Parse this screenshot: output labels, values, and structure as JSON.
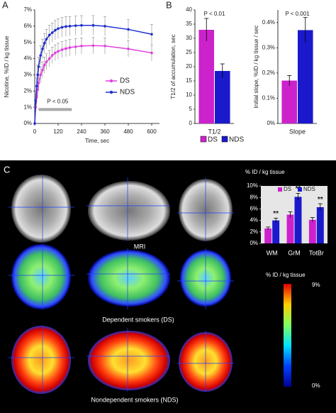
{
  "panels": [
    "A",
    "B",
    "C"
  ],
  "image_labels": {
    "mri": "MRI",
    "ds": "Dependent smokers (DS)",
    "nds": "Nondependent smokers (NDS)"
  },
  "colorbar": {
    "title": "% ID / kg tissue",
    "max_label": "9%",
    "min_label": "0%"
  },
  "chart_data": [
    {
      "type": "line",
      "x_label": "Time, sec",
      "y_label": "Nicotine, %ID / kg tissue",
      "x": [
        0,
        5,
        10,
        15,
        20,
        30,
        40,
        50,
        60,
        75,
        90,
        105,
        120,
        140,
        160,
        180,
        210,
        240,
        300,
        360,
        480,
        600
      ],
      "series": [
        {
          "name": "DS",
          "color": "#e040e0",
          "values": [
            0,
            1.0,
            1.6,
            2.1,
            2.5,
            3.0,
            3.3,
            3.6,
            3.8,
            4.0,
            4.2,
            4.35,
            4.45,
            4.55,
            4.62,
            4.68,
            4.73,
            4.78,
            4.8,
            4.78,
            4.6,
            4.35
          ],
          "errors": [
            0,
            0.3,
            0.4,
            0.45,
            0.5,
            0.5,
            0.5,
            0.5,
            0.5,
            0.5,
            0.5,
            0.5,
            0.5,
            0.5,
            0.5,
            0.5,
            0.5,
            0.5,
            0.5,
            0.5,
            0.5,
            0.5
          ]
        },
        {
          "name": "NDS",
          "color": "#1f2fd0",
          "values": [
            0,
            1.4,
            2.3,
            3.0,
            3.5,
            4.2,
            4.6,
            4.95,
            5.2,
            5.45,
            5.6,
            5.75,
            5.85,
            5.93,
            5.98,
            6.0,
            6.03,
            6.05,
            6.05,
            6.0,
            5.8,
            5.5
          ],
          "errors": [
            0,
            0.4,
            0.5,
            0.6,
            0.6,
            0.6,
            0.6,
            0.6,
            0.6,
            0.6,
            0.6,
            0.6,
            0.6,
            0.6,
            0.6,
            0.6,
            0.6,
            0.6,
            0.6,
            0.6,
            0.6,
            0.6
          ]
        }
      ],
      "xlim": [
        0,
        640
      ],
      "xticks": [
        0,
        120,
        240,
        360,
        480,
        600
      ],
      "ylim": [
        0,
        7
      ],
      "yticks": [
        {
          "value": 0,
          "label": "0%"
        },
        {
          "value": 1,
          "label": "1%"
        },
        {
          "value": 2,
          "label": "2%"
        },
        {
          "value": 3,
          "label": "3%"
        },
        {
          "value": 4,
          "label": "4%"
        },
        {
          "value": 5,
          "label": "5%"
        },
        {
          "value": 6,
          "label": "6%"
        },
        {
          "value": 7,
          "label": "7%"
        }
      ],
      "significance": {
        "label": "P < 0.05",
        "range": [
          20,
          190
        ]
      }
    },
    {
      "type": "bar",
      "y_label": "T1/2 of accumulation, sec",
      "annotation": "P < 0.01",
      "categories": [
        "T1/2"
      ],
      "series": [
        {
          "name": "DS",
          "color": "#cc22cc",
          "values": [
            33
          ],
          "errors": [
            4
          ]
        },
        {
          "name": "NDS",
          "color": "#1a1acc",
          "values": [
            18.5
          ],
          "errors": [
            2.5
          ]
        }
      ],
      "ylim": [
        0,
        40
      ],
      "yticks": [
        0,
        5,
        10,
        15,
        20,
        25,
        30,
        35,
        40
      ]
    },
    {
      "type": "bar",
      "y_label": "Initial slope, %ID / kg tissue / sec",
      "annotation": "P < 0.001",
      "categories": [
        "Slope"
      ],
      "series": [
        {
          "color": "#cc22cc",
          "values": [
            0.17
          ],
          "errors": [
            0.02
          ]
        },
        {
          "color": "#1a1acc",
          "values": [
            0.37
          ],
          "errors": [
            0.05
          ]
        }
      ],
      "ylim": [
        0,
        0.45
      ],
      "yticks": [
        {
          "value": 0,
          "label": "0%"
        },
        {
          "value": 0.1,
          "label": "0.1%"
        },
        {
          "value": 0.2,
          "label": "0.2%"
        },
        {
          "value": 0.3,
          "label": "0.3%"
        },
        {
          "value": 0.4,
          "label": "0.4%"
        }
      ]
    },
    {
      "type": "bar",
      "title": "% ID / kg tissue",
      "categories": [
        "WM",
        "GrM",
        "TotBr"
      ],
      "series": [
        {
          "name": "DS",
          "color": "#cc22cc",
          "values": [
            2.6,
            5.0,
            4.1
          ],
          "errors": [
            0.25,
            0.5,
            0.4
          ]
        },
        {
          "name": "NDS",
          "color": "#1a1acc",
          "values": [
            4.0,
            8.1,
            6.3
          ],
          "errors": [
            0.4,
            0.6,
            0.6
          ]
        }
      ],
      "significance": [
        "**",
        "**",
        "**"
      ],
      "ylim": [
        0,
        10
      ],
      "yticks": [
        {
          "value": 0,
          "label": "0%"
        },
        {
          "value": 2,
          "label": "2%"
        },
        {
          "value": 4,
          "label": "4%"
        },
        {
          "value": 6,
          "label": "6%"
        },
        {
          "value": 8,
          "label": "8%"
        },
        {
          "value": 10,
          "label": "10%"
        }
      ]
    }
  ]
}
